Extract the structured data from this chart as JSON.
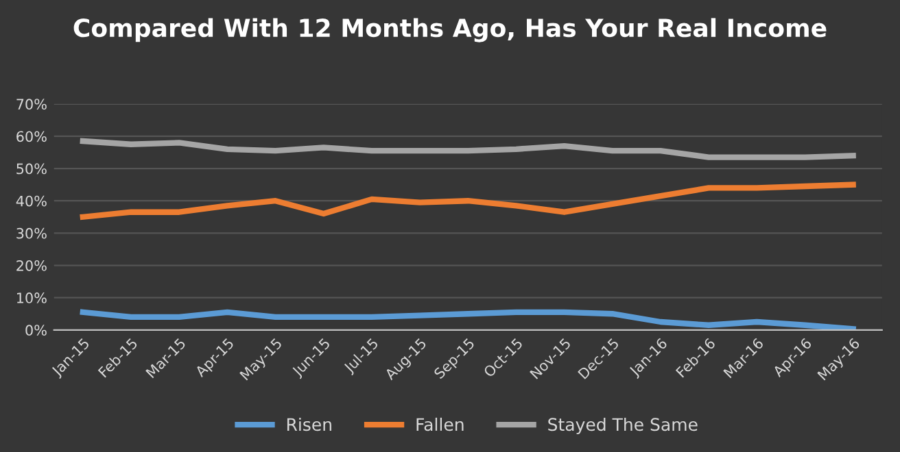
{
  "chart_data": {
    "type": "line",
    "title": "Compared With 12 Months Ago, Has Your Real Income",
    "categories": [
      "Jan-15",
      "Feb-15",
      "Mar-15",
      "Apr-15",
      "May-15",
      "Jun-15",
      "Jul-15",
      "Aug-15",
      "Sep-15",
      "Oct-15",
      "Nov-15",
      "Dec-15",
      "Jan-16",
      "Feb-16",
      "Mar-16",
      "Apr-16",
      "May-16"
    ],
    "series": [
      {
        "name": "Risen",
        "color": "#5b9bd5",
        "values": [
          5.5,
          4,
          4,
          5.5,
          4,
          4,
          4,
          4.5,
          5,
          5.5,
          5.5,
          5,
          2.5,
          1.5,
          2.5,
          1.5,
          0.3
        ]
      },
      {
        "name": "Fallen",
        "color": "#ed7d31",
        "values": [
          35,
          36.5,
          36.5,
          38.5,
          40,
          36,
          40.5,
          39.5,
          40,
          38.5,
          36.5,
          39,
          41.5,
          44,
          44,
          44.5,
          45
        ]
      },
      {
        "name": "Stayed The Same",
        "color": "#a5a5a5",
        "values": [
          58.5,
          57.5,
          58,
          56,
          55.5,
          56.5,
          55.5,
          55.5,
          55.5,
          56,
          57,
          55.5,
          55.5,
          53.5,
          53.5,
          53.5,
          54
        ]
      }
    ],
    "ylim": [
      0,
      70
    ],
    "yticks": [
      {
        "value": 0,
        "label": "0%"
      },
      {
        "value": 10,
        "label": "10%"
      },
      {
        "value": 20,
        "label": "20%"
      },
      {
        "value": 30,
        "label": "30%"
      },
      {
        "value": 40,
        "label": "40%"
      },
      {
        "value": 50,
        "label": "50%"
      },
      {
        "value": 60,
        "label": "60%"
      },
      {
        "value": 70,
        "label": "70%"
      }
    ],
    "grid": "y",
    "legend": "bottom",
    "marker": "none",
    "line_style": "solid"
  }
}
